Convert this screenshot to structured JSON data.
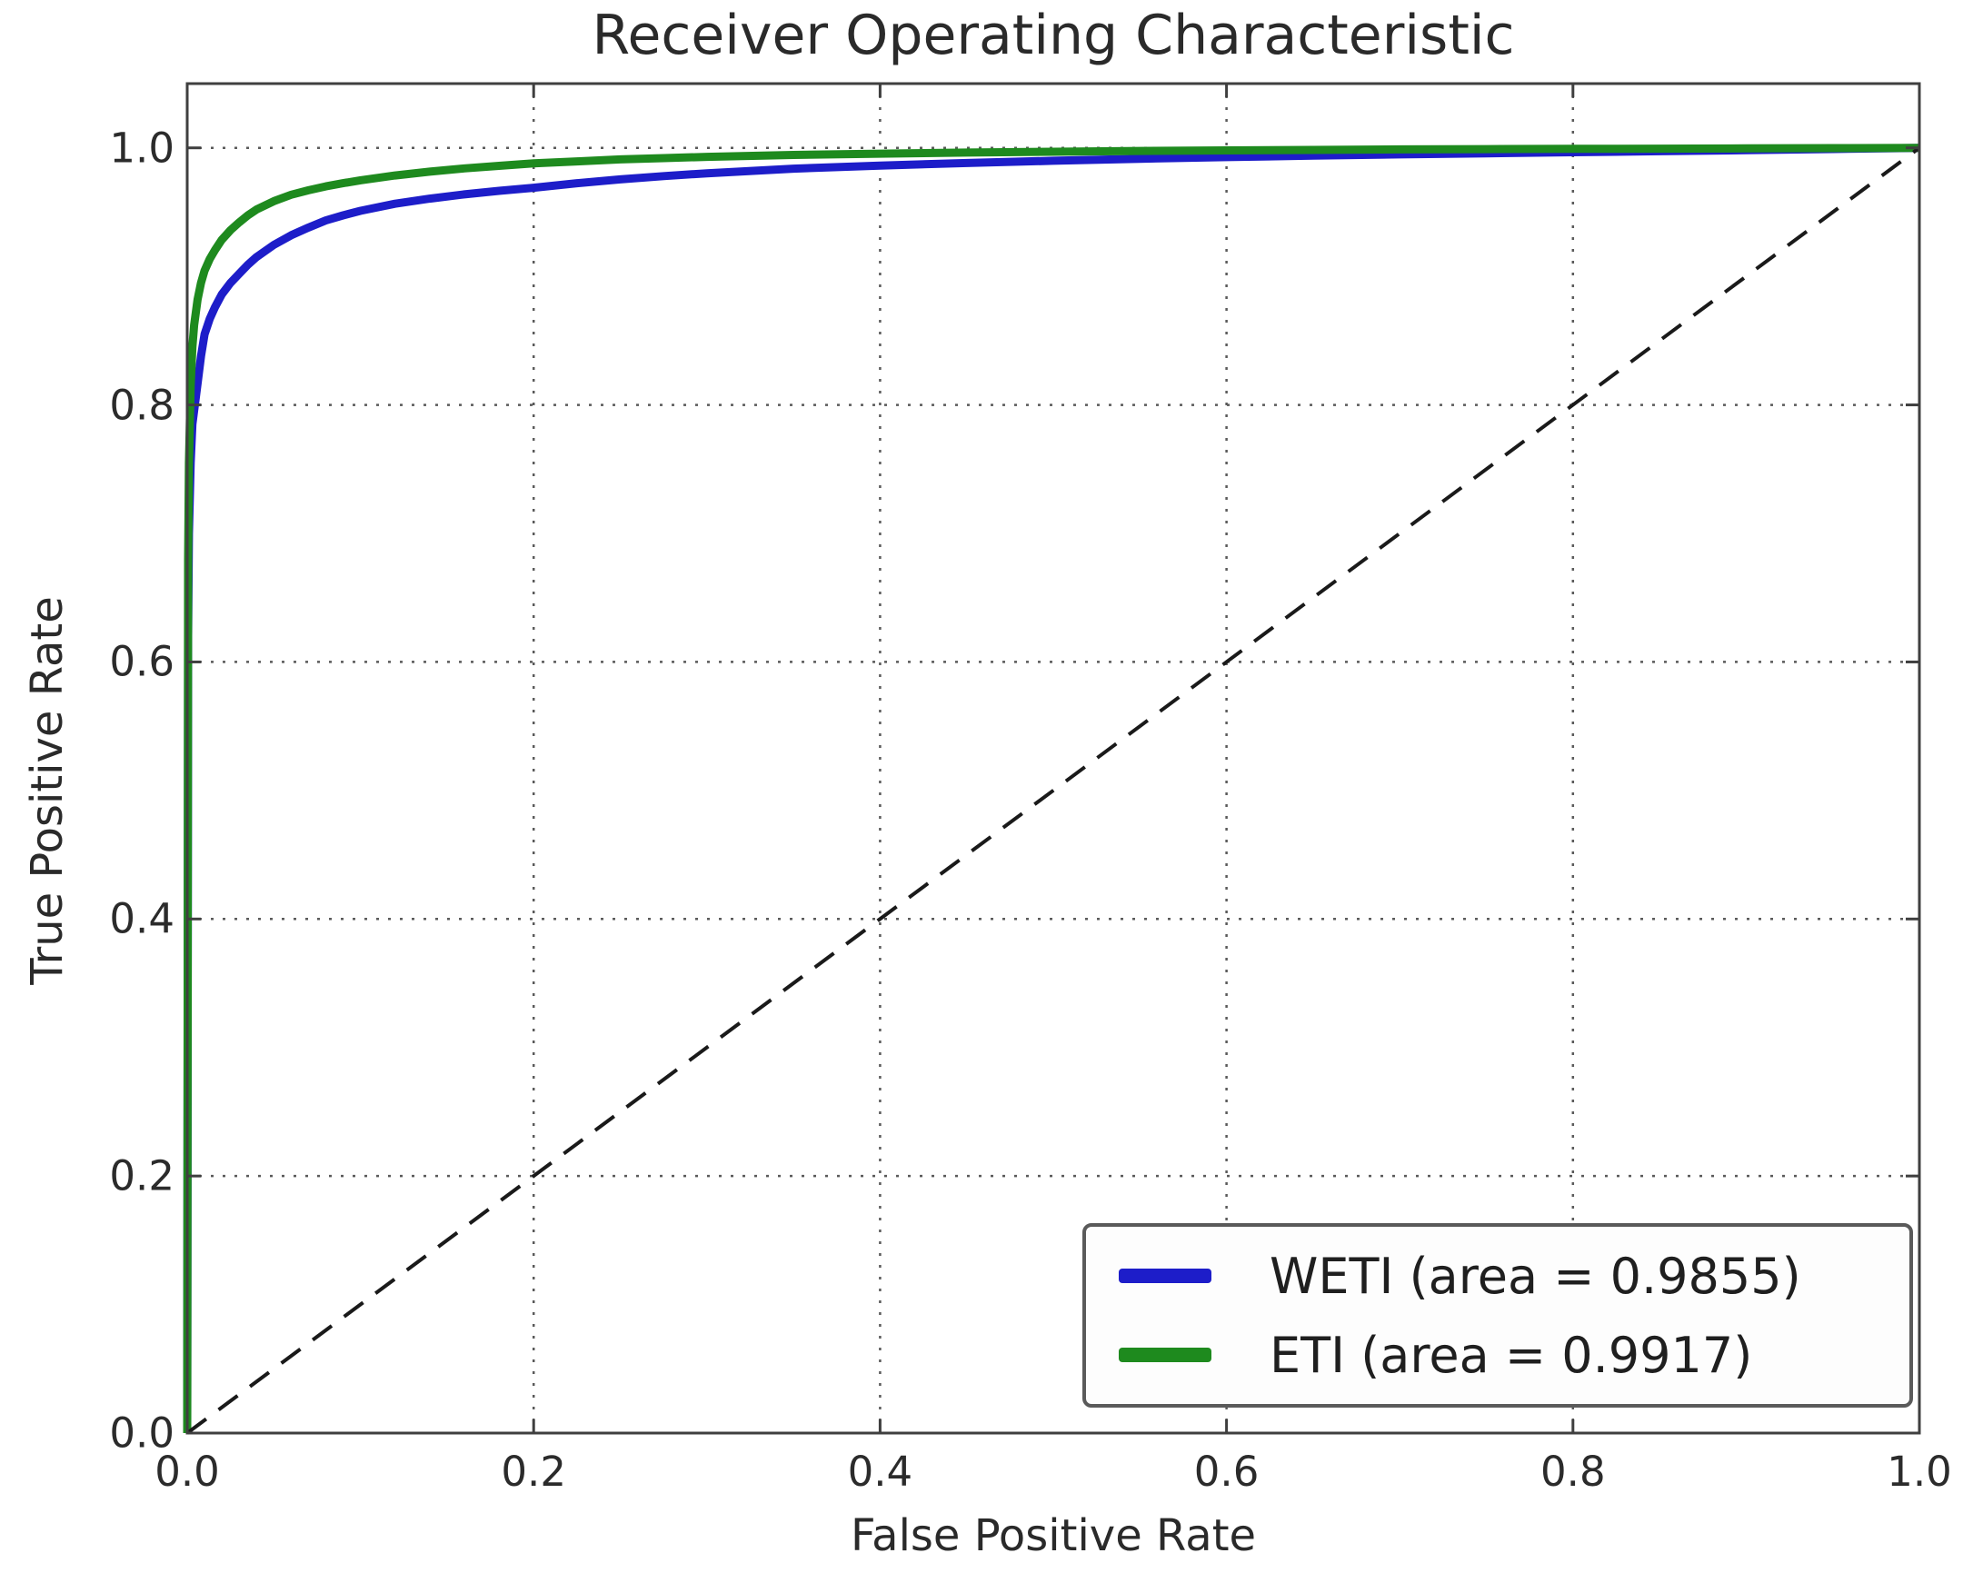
{
  "figure": {
    "title": "Receiver Operating Characteristic",
    "xlabel": "False Positive Rate",
    "ylabel": "True Positive Rate"
  },
  "legend": {
    "items": [
      {
        "label": "WETI (area = 0.9855)",
        "color": "#1d1dc9"
      },
      {
        "label": "ETI (area = 0.9917)",
        "color": "#1e8a1e"
      }
    ]
  },
  "colors": {
    "spine": "#3f3f3f",
    "grid": "#5a5a5a",
    "diagonal": "#1a1a1a",
    "weti_blue": "#1d1dc9",
    "eti_green": "#1e8a1e",
    "background": "#ffffff"
  },
  "chart_data": {
    "type": "line",
    "title": "Receiver Operating Characteristic",
    "xlabel": "False Positive Rate",
    "ylabel": "True Positive Rate",
    "xlim": [
      0.0,
      1.0
    ],
    "ylim": [
      0.0,
      1.05
    ],
    "x_tick_values": [
      0.0,
      0.2,
      0.4,
      0.6,
      0.8,
      1.0
    ],
    "x_tick_labels": [
      "0.0",
      "0.2",
      "0.4",
      "0.6",
      "0.8",
      "1.0"
    ],
    "y_tick_values": [
      0.0,
      0.2,
      0.4,
      0.6,
      0.8,
      1.0
    ],
    "y_tick_labels": [
      "0.0",
      "0.2",
      "0.4",
      "0.6",
      "0.8",
      "1.0"
    ],
    "grid": true,
    "grid_style": "dotted",
    "legend_position": "lower right",
    "series": [
      {
        "name": "WETI (area = 0.9855)",
        "auc": 0.9855,
        "color": "#1d1dc9",
        "line_style": "solid",
        "line_width": 9,
        "points": [
          [
            0.0,
            0.0
          ],
          [
            0.0005,
            0.62
          ],
          [
            0.001,
            0.7
          ],
          [
            0.002,
            0.755
          ],
          [
            0.003,
            0.785
          ],
          [
            0.005,
            0.806
          ],
          [
            0.008,
            0.838
          ],
          [
            0.01,
            0.855
          ],
          [
            0.013,
            0.867
          ],
          [
            0.016,
            0.876
          ],
          [
            0.02,
            0.886
          ],
          [
            0.025,
            0.895
          ],
          [
            0.03,
            0.902
          ],
          [
            0.035,
            0.909
          ],
          [
            0.04,
            0.915
          ],
          [
            0.05,
            0.9245
          ],
          [
            0.06,
            0.932
          ],
          [
            0.07,
            0.938
          ],
          [
            0.08,
            0.9435
          ],
          [
            0.09,
            0.9475
          ],
          [
            0.1,
            0.951
          ],
          [
            0.12,
            0.9565
          ],
          [
            0.14,
            0.9605
          ],
          [
            0.16,
            0.9638
          ],
          [
            0.18,
            0.9666
          ],
          [
            0.2,
            0.969
          ],
          [
            0.225,
            0.9725
          ],
          [
            0.25,
            0.9755
          ],
          [
            0.275,
            0.978
          ],
          [
            0.3,
            0.9802
          ],
          [
            0.35,
            0.9838
          ],
          [
            0.4,
            0.9862
          ],
          [
            0.45,
            0.9882
          ],
          [
            0.5,
            0.99
          ],
          [
            0.55,
            0.9915
          ],
          [
            0.6,
            0.9928
          ],
          [
            0.65,
            0.9939
          ],
          [
            0.7,
            0.9949
          ],
          [
            0.75,
            0.9958
          ],
          [
            0.8,
            0.9966
          ],
          [
            0.85,
            0.9974
          ],
          [
            0.9,
            0.9982
          ],
          [
            0.95,
            0.9991
          ],
          [
            1.0,
            1.0
          ]
        ]
      },
      {
        "name": "ETI (area = 0.9917)",
        "auc": 0.9917,
        "color": "#1e8a1e",
        "line_style": "solid",
        "line_width": 9,
        "points": [
          [
            0.0,
            0.0
          ],
          [
            0.0005,
            0.68
          ],
          [
            0.001,
            0.755
          ],
          [
            0.002,
            0.815
          ],
          [
            0.003,
            0.845
          ],
          [
            0.004,
            0.862
          ],
          [
            0.006,
            0.882
          ],
          [
            0.008,
            0.895
          ],
          [
            0.01,
            0.9045
          ],
          [
            0.013,
            0.9135
          ],
          [
            0.016,
            0.9205
          ],
          [
            0.02,
            0.9285
          ],
          [
            0.025,
            0.936
          ],
          [
            0.03,
            0.942
          ],
          [
            0.035,
            0.9475
          ],
          [
            0.04,
            0.952
          ],
          [
            0.05,
            0.9585
          ],
          [
            0.06,
            0.9635
          ],
          [
            0.07,
            0.967
          ],
          [
            0.08,
            0.97
          ],
          [
            0.09,
            0.9725
          ],
          [
            0.1,
            0.9748
          ],
          [
            0.12,
            0.9785
          ],
          [
            0.14,
            0.9815
          ],
          [
            0.16,
            0.984
          ],
          [
            0.18,
            0.986
          ],
          [
            0.2,
            0.988
          ],
          [
            0.225,
            0.9895
          ],
          [
            0.25,
            0.991
          ],
          [
            0.275,
            0.992
          ],
          [
            0.3,
            0.993
          ],
          [
            0.35,
            0.9945
          ],
          [
            0.4,
            0.9955
          ],
          [
            0.45,
            0.9963
          ],
          [
            0.5,
            0.997
          ],
          [
            0.55,
            0.9976
          ],
          [
            0.6,
            0.998
          ],
          [
            0.65,
            0.9984
          ],
          [
            0.7,
            0.9988
          ],
          [
            0.75,
            0.999
          ],
          [
            0.8,
            0.9992
          ],
          [
            0.85,
            0.9994
          ],
          [
            0.9,
            0.9996
          ],
          [
            0.95,
            0.9998
          ],
          [
            1.0,
            1.0
          ]
        ]
      },
      {
        "name": "chance-diagonal",
        "in_legend": false,
        "color": "#1a1a1a",
        "line_style": "dashed",
        "line_width": 4,
        "points": [
          [
            0.0,
            0.0
          ],
          [
            1.0,
            1.0
          ]
        ]
      }
    ]
  }
}
